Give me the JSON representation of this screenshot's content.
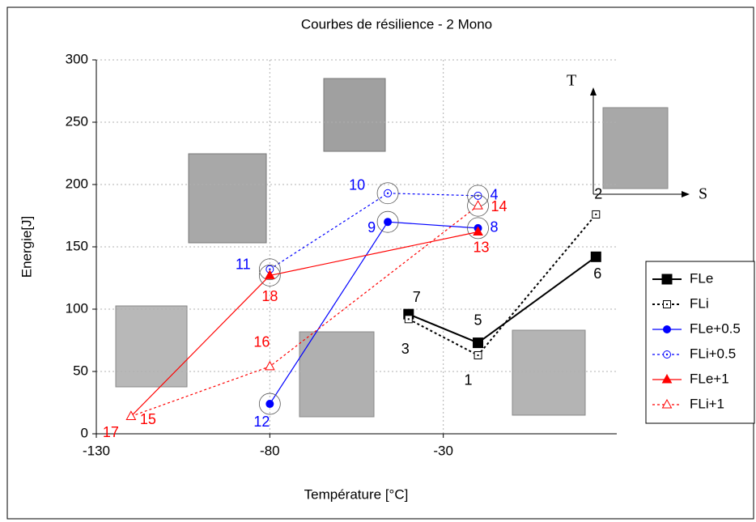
{
  "chart_data": {
    "type": "line",
    "title": "Courbes de résilience - 2 Mono",
    "x_label": "Température [°C]",
    "y_label": "Energie[J]",
    "xlim": [
      -130,
      20
    ],
    "xticks": [
      -130,
      -80,
      -30
    ],
    "ylim": [
      0,
      300
    ],
    "yticks": [
      0,
      50,
      100,
      150,
      200,
      250,
      300
    ],
    "grid": true,
    "legend": "right",
    "inset_labels": [
      "T",
      "S"
    ],
    "series": [
      {
        "name": "FLe",
        "color": "#000000",
        "marker": "square",
        "filled": true,
        "dashed": false,
        "x": [
          -40,
          -20,
          14
        ],
        "values": [
          96,
          73,
          142
        ],
        "point_labels": [
          "7",
          "5",
          "6"
        ]
      },
      {
        "name": "FLi",
        "color": "#000000",
        "marker": "square",
        "filled": false,
        "dashed": true,
        "x": [
          -40,
          -20,
          14
        ],
        "values": [
          92,
          63,
          176
        ],
        "point_labels": [
          "3",
          "1",
          "2"
        ]
      },
      {
        "name": "FLe+0.5",
        "color": "#0000ff",
        "marker": "circle",
        "filled": true,
        "dashed": false,
        "x": [
          -80,
          -46,
          -20
        ],
        "values": [
          24,
          170,
          165
        ],
        "point_labels": [
          "12",
          "9",
          "8"
        ]
      },
      {
        "name": "FLi+0.5",
        "color": "#0000ff",
        "marker": "circle",
        "filled": false,
        "dashed": true,
        "x": [
          -80,
          -46,
          -20
        ],
        "values": [
          132,
          193,
          191
        ],
        "point_labels": [
          "11",
          "10",
          "4"
        ]
      },
      {
        "name": "FLe+1",
        "color": "#ff0000",
        "marker": "triangle",
        "filled": true,
        "dashed": false,
        "x": [
          -120,
          -80,
          -20
        ],
        "values": [
          14,
          127,
          162
        ],
        "point_labels": [
          "17",
          "18",
          "13"
        ]
      },
      {
        "name": "FLi+1",
        "color": "#ff0000",
        "marker": "triangle",
        "filled": false,
        "dashed": true,
        "x": [
          -120,
          -80,
          -20
        ],
        "values": [
          14,
          54,
          183
        ],
        "point_labels": [
          "15",
          "16",
          "14"
        ]
      }
    ]
  }
}
